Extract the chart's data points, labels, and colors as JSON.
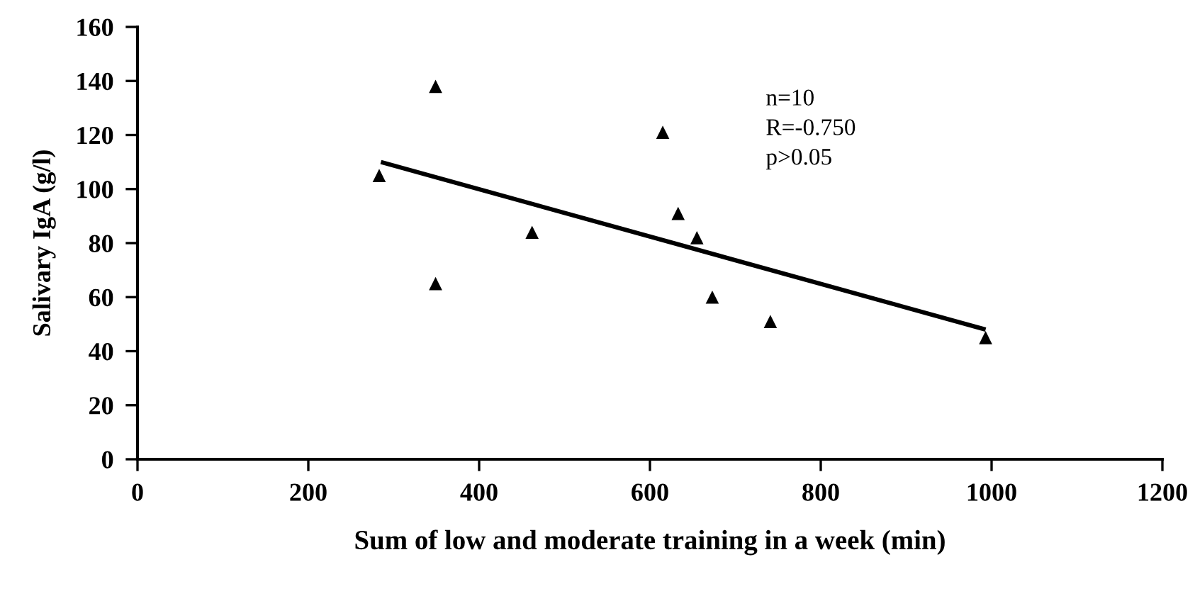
{
  "chart_data": {
    "type": "scatter",
    "xlabel": "Sum of low and moderate training in a week (min)",
    "ylabel": "Salivary IgA (g/l)",
    "series": [
      {
        "color": "#000000",
        "marker": "triangle",
        "x": [
          283,
          349,
          349,
          462,
          615,
          633,
          655,
          673,
          741,
          993
        ],
        "values": [
          105,
          138,
          65,
          84,
          121,
          91,
          82,
          60,
          51,
          45
        ]
      },
      {
        "type": "line",
        "color": "#000000",
        "marker": "none",
        "line_style": "solid",
        "x": [
          285,
          993
        ],
        "values": [
          110,
          48
        ]
      }
    ],
    "annotations": [
      "n=10\nR=-0.750\np>0.05"
    ],
    "xlim": [
      0,
      1200
    ],
    "xticks": [
      0,
      200,
      400,
      600,
      800,
      1000,
      1200
    ],
    "ylim": [
      0,
      160
    ],
    "yticks": [
      0,
      20,
      40,
      60,
      80,
      100,
      120,
      140,
      160
    ],
    "grid": false,
    "legend": false
  }
}
